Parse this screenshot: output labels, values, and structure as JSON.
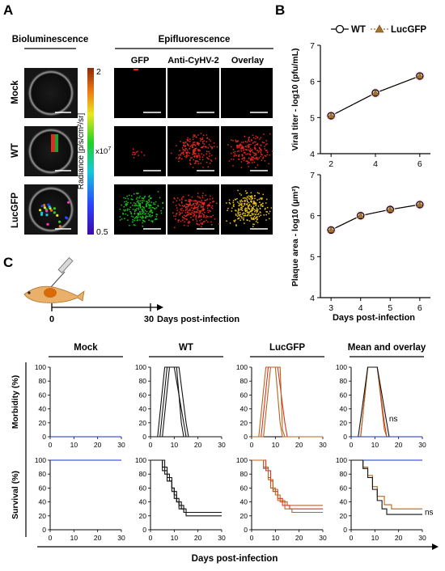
{
  "panels": {
    "a": "A",
    "b": "B",
    "c": "C"
  },
  "panel_a": {
    "biolum_header": "Bioluminescence",
    "epi_header": "Epifluorescence",
    "col_labels": [
      "GFP",
      "Anti-CyHV-2",
      "Overlay"
    ],
    "row_labels": [
      "Mock",
      "WT",
      "LucGFP"
    ],
    "colorbar": {
      "max": "2",
      "min": "0.5",
      "multiplier": "x10",
      "multiplier_exp": "7",
      "label": "Radiance [p/s/cm²/sr]"
    },
    "colors": {
      "gfp": "#19c419",
      "anti": "#e8281e",
      "overlay": "#e8c21e"
    }
  },
  "chart_data": [
    {
      "type": "line",
      "legend": [
        "WT",
        "LucGFP"
      ],
      "ylabel": "Viral titer - log10 (pfu/mL)",
      "xlabel": "",
      "x": [
        2,
        4,
        6
      ],
      "series": [
        {
          "name": "WT",
          "values": [
            5.05,
            5.68,
            6.15
          ]
        },
        {
          "name": "LucGFP",
          "values": [
            5.05,
            5.68,
            6.15
          ]
        }
      ],
      "xticks": [
        "2",
        "4",
        "6"
      ],
      "ylim": [
        4,
        7
      ],
      "yticks": [
        "4",
        "5",
        "6",
        "7"
      ]
    },
    {
      "type": "line",
      "ylabel": "Plaque area - log10 (µm²)",
      "xlabel": "Days post-infection",
      "x": [
        3,
        4,
        5,
        6
      ],
      "series": [
        {
          "name": "WT",
          "values": [
            5.65,
            6.0,
            6.15,
            6.27
          ]
        },
        {
          "name": "LucGFP",
          "values": [
            5.65,
            6.0,
            6.15,
            6.27
          ]
        }
      ],
      "xticks": [
        "3",
        "4",
        "5",
        "6"
      ],
      "ylim": [
        4,
        7
      ],
      "yticks": [
        "4",
        "5",
        "6",
        "7"
      ]
    },
    {
      "type": "line",
      "group_titles": [
        "Mock",
        "WT",
        "LucGFP",
        "Mean and overlay"
      ],
      "morbidity_ylabel": "Morbidity (%)",
      "survival_ylabel": "Survival (%)",
      "xlabel": "Days post-infection",
      "xticks": [
        "0",
        "10",
        "20",
        "30"
      ],
      "yticks": [
        "0",
        "20",
        "40",
        "60",
        "80",
        "100"
      ],
      "xlim": [
        0,
        30
      ],
      "ylim": [
        0,
        100
      ],
      "ns_label": "ns",
      "colors": {
        "mock": "#1b2fd6",
        "wt": "#111111",
        "luc": "#b5651d",
        "luc2": "#e0301e"
      },
      "morbidity": {
        "mock": [
          [
            [
              0,
              0
            ],
            [
              30,
              0
            ]
          ]
        ],
        "wt": [
          [
            [
              0,
              0
            ],
            [
              3,
              0
            ],
            [
              6,
              100
            ],
            [
              11,
              100
            ],
            [
              13,
              20
            ],
            [
              14,
              0
            ],
            [
              30,
              0
            ]
          ],
          [
            [
              0,
              0
            ],
            [
              4,
              0
            ],
            [
              7,
              100
            ],
            [
              10,
              100
            ],
            [
              14,
              20
            ],
            [
              15,
              0
            ],
            [
              30,
              0
            ]
          ],
          [
            [
              0,
              0
            ],
            [
              5,
              0
            ],
            [
              8,
              100
            ],
            [
              12,
              100
            ],
            [
              15,
              20
            ],
            [
              16,
              0
            ],
            [
              30,
              0
            ]
          ]
        ],
        "luc": [
          [
            [
              0,
              0
            ],
            [
              3,
              0
            ],
            [
              6,
              100
            ],
            [
              10,
              100
            ],
            [
              12,
              20
            ],
            [
              13,
              0
            ],
            [
              30,
              0
            ]
          ],
          [
            [
              0,
              0
            ],
            [
              4,
              0
            ],
            [
              7,
              100
            ],
            [
              11,
              100
            ],
            [
              14,
              20
            ],
            [
              15,
              0
            ],
            [
              30,
              0
            ]
          ],
          [
            [
              0,
              0
            ],
            [
              5,
              0
            ],
            [
              8,
              100
            ],
            [
              12,
              100
            ],
            [
              13,
              10
            ],
            [
              14,
              0
            ],
            [
              30,
              0
            ]
          ]
        ],
        "mean_wt": [
          [
            0,
            0
          ],
          [
            3,
            0
          ],
          [
            7,
            100
          ],
          [
            11,
            100
          ],
          [
            15,
            20
          ],
          [
            16,
            0
          ],
          [
            30,
            0
          ]
        ],
        "mean_luc": [
          [
            0,
            0
          ],
          [
            4,
            0
          ],
          [
            7,
            100
          ],
          [
            11,
            100
          ],
          [
            14,
            10
          ],
          [
            15,
            0
          ],
          [
            30,
            0
          ]
        ]
      },
      "survival": {
        "mock": [
          [
            [
              0,
              100
            ],
            [
              30,
              100
            ]
          ]
        ],
        "wt": [
          [
            [
              0,
              100
            ],
            [
              5,
              100
            ],
            [
              5,
              90
            ],
            [
              6,
              90
            ],
            [
              6,
              80
            ],
            [
              8,
              80
            ],
            [
              8,
              70
            ],
            [
              9,
              70
            ],
            [
              9,
              60
            ],
            [
              10,
              60
            ],
            [
              10,
              50
            ],
            [
              11,
              50
            ],
            [
              11,
              40
            ],
            [
              12,
              40
            ],
            [
              12,
              30
            ],
            [
              14,
              30
            ],
            [
              14,
              25
            ],
            [
              30,
              25
            ]
          ],
          [
            [
              0,
              100
            ],
            [
              5,
              100
            ],
            [
              5,
              85
            ],
            [
              7,
              85
            ],
            [
              7,
              70
            ],
            [
              9,
              70
            ],
            [
              9,
              55
            ],
            [
              11,
              55
            ],
            [
              11,
              40
            ],
            [
              13,
              40
            ],
            [
              13,
              30
            ],
            [
              15,
              30
            ],
            [
              15,
              20
            ],
            [
              30,
              20
            ]
          ],
          [
            [
              0,
              100
            ],
            [
              6,
              100
            ],
            [
              6,
              90
            ],
            [
              7,
              90
            ],
            [
              7,
              75
            ],
            [
              9,
              75
            ],
            [
              9,
              60
            ],
            [
              10,
              60
            ],
            [
              10,
              45
            ],
            [
              12,
              45
            ],
            [
              12,
              35
            ],
            [
              14,
              35
            ],
            [
              14,
              25
            ],
            [
              30,
              25
            ]
          ]
        ],
        "luc": [
          [
            [
              0,
              100
            ],
            [
              5,
              100
            ],
            [
              5,
              90
            ],
            [
              7,
              90
            ],
            [
              7,
              75
            ],
            [
              8,
              75
            ],
            [
              8,
              60
            ],
            [
              10,
              60
            ],
            [
              10,
              50
            ],
            [
              12,
              50
            ],
            [
              12,
              40
            ],
            [
              15,
              40
            ],
            [
              15,
              35
            ],
            [
              30,
              35
            ]
          ],
          [
            [
              0,
              100
            ],
            [
              6,
              100
            ],
            [
              6,
              85
            ],
            [
              8,
              85
            ],
            [
              8,
              70
            ],
            [
              9,
              70
            ],
            [
              9,
              55
            ],
            [
              11,
              55
            ],
            [
              11,
              45
            ],
            [
              13,
              45
            ],
            [
              13,
              35
            ],
            [
              16,
              35
            ],
            [
              16,
              30
            ],
            [
              30,
              30
            ]
          ],
          [
            [
              0,
              100
            ],
            [
              5,
              100
            ],
            [
              5,
              88
            ],
            [
              7,
              88
            ],
            [
              7,
              72
            ],
            [
              9,
              72
            ],
            [
              9,
              58
            ],
            [
              11,
              58
            ],
            [
              11,
              42
            ],
            [
              14,
              42
            ],
            [
              14,
              30
            ],
            [
              17,
              30
            ],
            [
              17,
              25
            ],
            [
              30,
              25
            ]
          ]
        ],
        "mean_mock": [
          [
            0,
            100
          ],
          [
            30,
            100
          ]
        ],
        "mean_wt": [
          [
            0,
            100
          ],
          [
            5,
            100
          ],
          [
            5,
            88
          ],
          [
            7,
            88
          ],
          [
            7,
            75
          ],
          [
            9,
            75
          ],
          [
            9,
            58
          ],
          [
            11,
            58
          ],
          [
            11,
            42
          ],
          [
            13,
            42
          ],
          [
            13,
            30
          ],
          [
            15,
            30
          ],
          [
            15,
            22
          ],
          [
            30,
            22
          ]
        ],
        "mean_luc": [
          [
            0,
            100
          ],
          [
            5,
            100
          ],
          [
            5,
            90
          ],
          [
            7,
            90
          ],
          [
            7,
            78
          ],
          [
            9,
            78
          ],
          [
            9,
            62
          ],
          [
            11,
            62
          ],
          [
            11,
            48
          ],
          [
            14,
            48
          ],
          [
            14,
            36
          ],
          [
            17,
            36
          ],
          [
            17,
            30
          ],
          [
            30,
            30
          ]
        ]
      }
    }
  ],
  "panel_c": {
    "timeline_start": "0",
    "timeline_end": "30",
    "timeline_label": "Days post-infection"
  }
}
